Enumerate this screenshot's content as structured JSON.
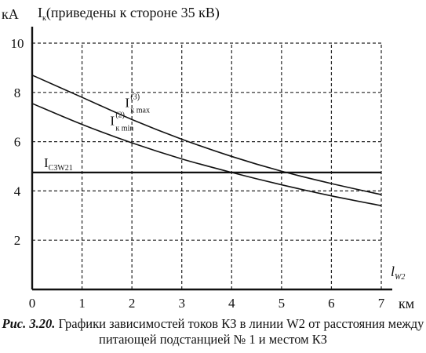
{
  "chart_data": {
    "type": "line",
    "title": "Iк (приведены к стороне 35 кВ)",
    "title_parts": {
      "main": "I",
      "sub": "к",
      "rest": "(приведены к стороне 35 кВ)"
    },
    "y_unit": "кА",
    "x_unit": "км",
    "x_axis_label": {
      "main": "l",
      "sub": "W2"
    },
    "xlim": [
      0,
      7
    ],
    "ylim": [
      0,
      10
    ],
    "x_ticks": [
      "0",
      "1",
      "2",
      "3",
      "4",
      "5",
      "6",
      "7"
    ],
    "y_ticks": [
      {
        "value": 2,
        "label": "2"
      },
      {
        "value": 4,
        "label": "4"
      },
      {
        "value": 6,
        "label": "6"
      },
      {
        "value": 8,
        "label": "8"
      },
      {
        "value": 10,
        "label": "10"
      }
    ],
    "grid": true,
    "series": [
      {
        "name": "Iк max(3)",
        "label_parts": {
          "main": "I",
          "sup": "(3)",
          "sub": "к max"
        },
        "x": [
          0,
          1,
          2,
          3,
          4,
          5,
          6,
          7
        ],
        "y": [
          8.7,
          7.8,
          6.9,
          6.1,
          5.4,
          4.8,
          4.3,
          3.85
        ]
      },
      {
        "name": "Iк min(2)",
        "label_parts": {
          "main": "I",
          "sup": "(2)",
          "sub": "к min"
        },
        "x": [
          0,
          1,
          2,
          3,
          4,
          5,
          6,
          7
        ],
        "y": [
          7.55,
          6.7,
          5.95,
          5.3,
          4.75,
          4.25,
          3.8,
          3.4
        ]
      }
    ],
    "threshold": {
      "name": "IСЗW21",
      "label_parts": {
        "main": "I",
        "sub": "СЗW21"
      },
      "value": 4.75
    }
  },
  "caption": {
    "prefix": "Рис. 3.20.",
    "text": " Графики зависимостей токов КЗ в линии W2 от расстояния между питающей подстанцией № 1 и местом КЗ"
  }
}
